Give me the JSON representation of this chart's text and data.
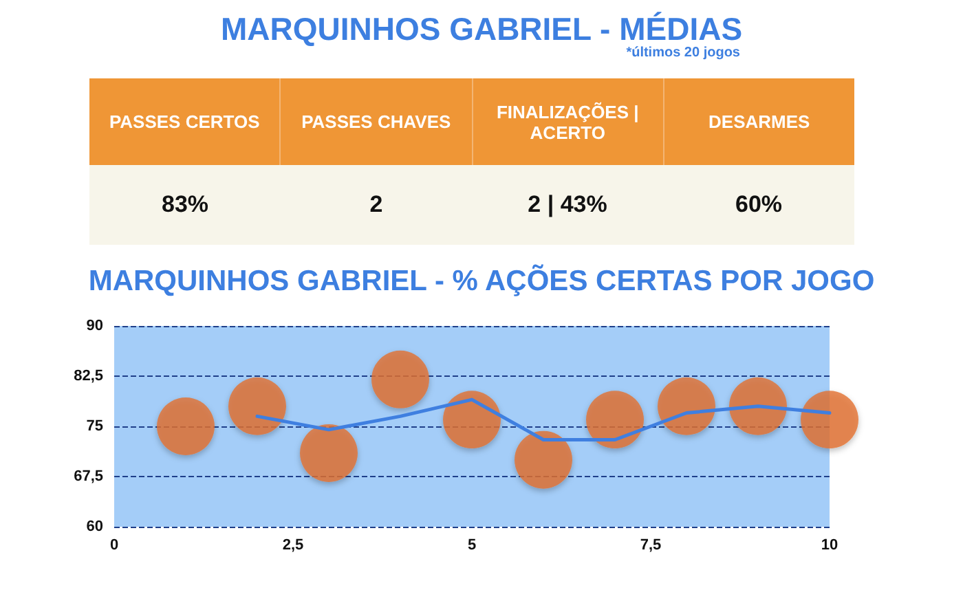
{
  "chart_data": [
    {
      "type": "other",
      "title": "MARQUINHOS GABRIEL - MÉDIAS",
      "subtitle": "*últimos 20 jogos",
      "categories": [
        "PASSES CERTOS",
        "PASSES CHAVES",
        "FINALIZAÇÕES | ACERTO",
        "DESARMES"
      ],
      "value_labels": [
        "83%",
        "2",
        "2 | 43%",
        "60%"
      ],
      "color": "#ef9636"
    },
    {
      "type": "scatter",
      "title": "MARQUINHOS GABRIEL - % AÇÕES CERTAS POR JOGO",
      "x": [
        1,
        2,
        3,
        4,
        5,
        6,
        7,
        8,
        9,
        10
      ],
      "series": [
        {
          "type": "scatter",
          "marker": "circle",
          "color": "#e2702e",
          "values": [
            75,
            78,
            71,
            82,
            76,
            70,
            76,
            78,
            78,
            76
          ]
        },
        {
          "type": "line",
          "marker": "none",
          "color": "#3f7fe0",
          "x": [
            2,
            3,
            4,
            5,
            6,
            7,
            8,
            9,
            10
          ],
          "values": [
            76.5,
            74.5,
            76.5,
            79,
            73,
            73,
            77,
            78,
            77
          ]
        }
      ],
      "xlim": [
        0,
        10
      ],
      "xticks": [
        0,
        {
          "value": 2.5,
          "label": "2,5"
        },
        5,
        {
          "value": 7.5,
          "label": "7,5"
        },
        10
      ],
      "ylim": [
        60,
        90
      ],
      "yticks": [
        60,
        {
          "value": 67.5,
          "label": "67,5"
        },
        75,
        {
          "value": 82.5,
          "label": "82,5"
        },
        90
      ],
      "grid": "y",
      "line_style": "solid"
    }
  ]
}
